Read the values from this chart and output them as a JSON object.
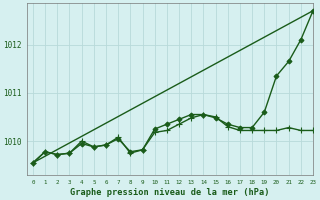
{
  "title": "Graphe pression niveau de la mer (hPa)",
  "background_color": "#d6f0f0",
  "grid_color": "#b8dada",
  "line_color": "#1a5c1a",
  "xlim": [
    -0.5,
    23
  ],
  "ylim": [
    1009.3,
    1012.85
  ],
  "yticks": [
    1010,
    1011,
    1012
  ],
  "xticks": [
    0,
    1,
    2,
    3,
    4,
    5,
    6,
    7,
    8,
    9,
    10,
    11,
    12,
    13,
    14,
    15,
    16,
    17,
    18,
    19,
    20,
    21,
    22,
    23
  ],
  "series": [
    {
      "x": [
        0,
        23
      ],
      "y": [
        1009.55,
        1012.7
      ],
      "marker": null,
      "linewidth": 1.0,
      "linestyle": "-"
    },
    {
      "x": [
        0,
        1,
        2,
        3,
        4,
        5,
        6,
        7,
        8,
        9,
        10,
        11,
        12,
        13,
        14,
        15,
        16,
        17,
        18,
        19,
        20,
        21,
        22,
        23
      ],
      "y": [
        1009.55,
        1009.78,
        1009.72,
        1009.75,
        1009.95,
        1009.88,
        1009.92,
        1010.05,
        1009.78,
        1009.82,
        1010.25,
        1010.35,
        1010.45,
        1010.55,
        1010.55,
        1010.48,
        1010.35,
        1010.28,
        1010.28,
        1010.6,
        1011.35,
        1011.65,
        1012.1,
        1012.7
      ],
      "marker": "D",
      "markersize": 2.5,
      "linewidth": 1.0,
      "linestyle": "-"
    },
    {
      "x": [
        0,
        1,
        2,
        3,
        4,
        5,
        6,
        7,
        8,
        9,
        10,
        11,
        12,
        13,
        14,
        15,
        16,
        17,
        18,
        19,
        20,
        21,
        22,
        23
      ],
      "y": [
        1009.55,
        1009.78,
        1009.72,
        1009.75,
        1010.0,
        1009.88,
        1009.92,
        1010.08,
        1009.75,
        1009.82,
        1010.18,
        1010.22,
        1010.35,
        1010.48,
        1010.55,
        1010.5,
        1010.3,
        1010.22,
        1010.22,
        1010.22,
        1010.22,
        1010.28,
        1010.22,
        1010.22
      ],
      "marker": "+",
      "markersize": 4.0,
      "linewidth": 1.0,
      "linestyle": "-"
    }
  ]
}
